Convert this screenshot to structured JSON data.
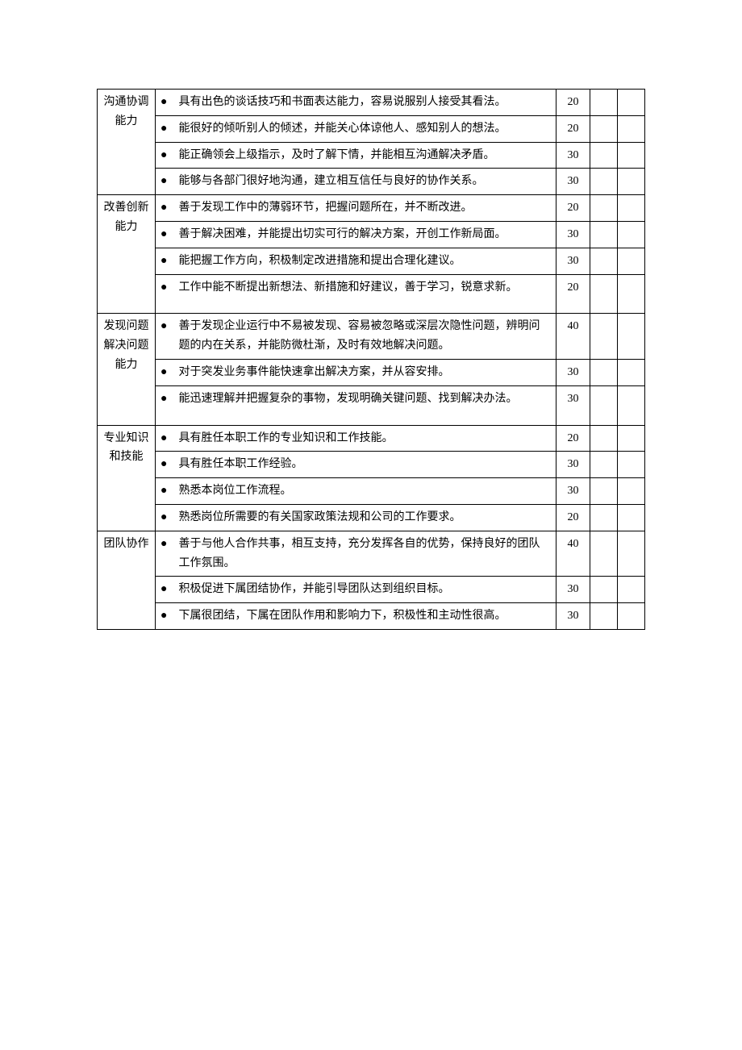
{
  "groups": [
    {
      "category": "沟通协调能力",
      "rows": [
        {
          "text": "具有出色的谈话技巧和书面表达能力，容易说服别人接受其看法。",
          "score": 20,
          "tall": false
        },
        {
          "text": "能很好的倾听别人的倾述，并能关心体谅他人、感知别人的想法。",
          "score": 20,
          "tall": false
        },
        {
          "text": "能正确领会上级指示，及时了解下情，并能相互沟通解决矛盾。",
          "score": 30,
          "tall": false
        },
        {
          "text": "能够与各部门很好地沟通，建立相互信任与良好的协作关系。",
          "score": 30,
          "tall": false
        }
      ]
    },
    {
      "category": "改善创新能力",
      "rows": [
        {
          "text": "善于发现工作中的薄弱环节，把握问题所在，并不断改进。",
          "score": 20,
          "tall": false
        },
        {
          "text": "善于解决困难，并能提出切实可行的解决方案，开创工作新局面。",
          "score": 30,
          "tall": false
        },
        {
          "text": "能把握工作方向，积极制定改进措施和提出合理化建议。",
          "score": 30,
          "tall": false
        },
        {
          "text": "工作中能不断提出新想法、新措施和好建议，善于学习，锐意求新。",
          "score": 20,
          "tall": true
        }
      ]
    },
    {
      "category": "发现问题解决问题能力",
      "rows": [
        {
          "text": "善于发现企业运行中不易被发现、容易被忽略或深层次隐性问题，辨明问题的内在关系，并能防微杜渐，及时有效地解决问题。",
          "score": 40,
          "tall": false
        },
        {
          "text": "对于突发业务事件能快速拿出解决方案，并从容安排。",
          "score": 30,
          "tall": false
        },
        {
          "text": "能迅速理解并把握复杂的事物，发现明确关键问题、找到解决办法。",
          "score": 30,
          "tall": true
        }
      ]
    },
    {
      "category": "专业知识和技能",
      "rows": [
        {
          "text": "具有胜任本职工作的专业知识和工作技能。",
          "score": 20,
          "tall": false
        },
        {
          "text": "具有胜任本职工作经验。",
          "score": 30,
          "tall": false
        },
        {
          "text": "熟悉本岗位工作流程。",
          "score": 30,
          "tall": false
        },
        {
          "text": "熟悉岗位所需要的有关国家政策法规和公司的工作要求。",
          "score": 20,
          "tall": false
        }
      ]
    },
    {
      "category": "团队协作",
      "rows": [
        {
          "text": "善于与他人合作共事，相互支持，充分发挥各自的优势，保持良好的团队工作氛围。",
          "score": 40,
          "tall": false
        },
        {
          "text": "积极促进下属团结协作，并能引导团队达到组织目标。",
          "score": 30,
          "tall": false
        },
        {
          "text": "下属很团结，下属在团队作用和影响力下，积极性和主动性很高。",
          "score": 30,
          "tall": false
        }
      ]
    }
  ]
}
